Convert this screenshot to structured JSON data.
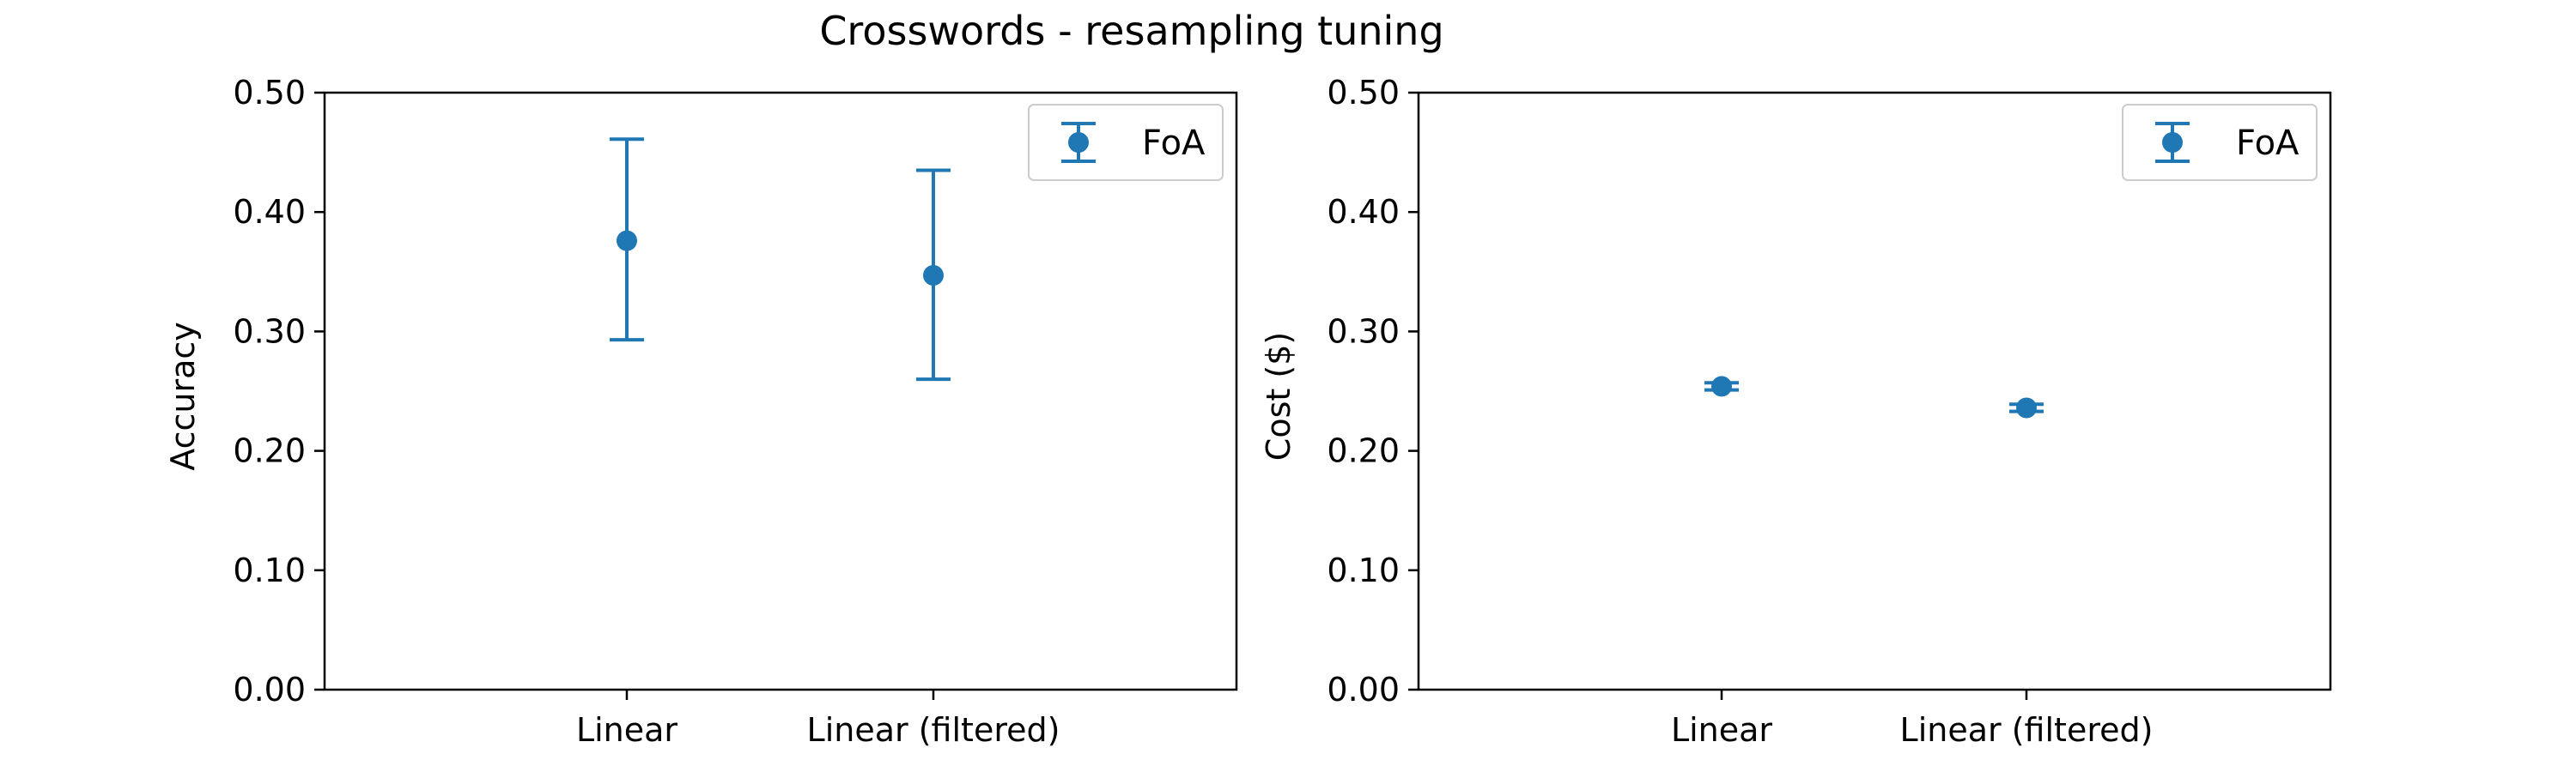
{
  "figure": {
    "title": "Crosswords - resampling tuning"
  },
  "colors": {
    "series": "#1f77b4",
    "axes": "#000000",
    "legend_border": "#cccccc"
  },
  "chart_data": [
    {
      "type": "scatter",
      "title": "",
      "xlabel": "",
      "ylabel": "Accuracy",
      "categories": [
        "Linear",
        "Linear (filtered)"
      ],
      "ylim": [
        0,
        0.5
      ],
      "yticks": [
        "0.00",
        "0.10",
        "0.20",
        "0.30",
        "0.40",
        "0.50"
      ],
      "grid": false,
      "legend": {
        "position": "upper right",
        "entries": [
          "FoA"
        ]
      },
      "series": [
        {
          "name": "FoA",
          "values": [
            0.376,
            0.347
          ],
          "err_low": [
            0.293,
            0.26
          ],
          "err_high": [
            0.461,
            0.435
          ]
        }
      ]
    },
    {
      "type": "scatter",
      "title": "",
      "xlabel": "",
      "ylabel": "Cost ($)",
      "categories": [
        "Linear",
        "Linear (filtered)"
      ],
      "ylim": [
        0,
        0.5
      ],
      "yticks": [
        "0.00",
        "0.10",
        "0.20",
        "0.30",
        "0.40",
        "0.50"
      ],
      "grid": false,
      "legend": {
        "position": "upper right",
        "entries": [
          "FoA"
        ]
      },
      "series": [
        {
          "name": "FoA",
          "values": [
            0.254,
            0.236
          ],
          "err_low": [
            0.251,
            0.233
          ],
          "err_high": [
            0.257,
            0.239
          ]
        }
      ]
    }
  ]
}
